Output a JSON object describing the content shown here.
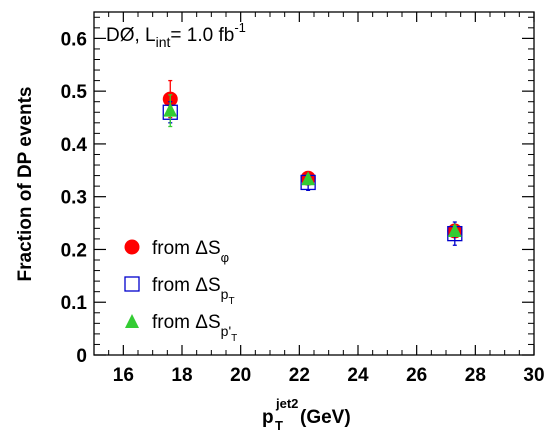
{
  "chart_data": {
    "type": "scatter",
    "xlabel": {
      "main": "p",
      "sup": "jet2",
      "sub": "T",
      "unit": "(GeV)"
    },
    "ylabel": "Fraction of DP events",
    "xlim": [
      15,
      30
    ],
    "ylim": [
      0,
      0.65
    ],
    "x_ticks": [
      "16",
      "18",
      "20",
      "22",
      "24",
      "26",
      "28",
      "30"
    ],
    "y_ticks": [
      "0",
      "0.1",
      "0.2",
      "0.3",
      "0.4",
      "0.5",
      "0.6"
    ],
    "experiment": {
      "name": "DØ, L",
      "sub": "int",
      "eq": "= 1.0 fb",
      "sup": "-1"
    },
    "series": [
      {
        "name": "from ΔSφ",
        "legend": {
          "text": "from ΔS",
          "sub": "φ",
          "subsub": ""
        },
        "marker": "circle",
        "color": "#ff0000",
        "x": [
          17.6,
          22.3,
          27.3
        ],
        "y": [
          0.485,
          0.335,
          0.235
        ],
        "yerr": [
          0.035,
          0.008,
          0.008
        ]
      },
      {
        "name": "from ΔSpT",
        "legend": {
          "text": "from ΔS",
          "sub": "p",
          "subsub": "T"
        },
        "marker": "open-square",
        "color": "#0000cc",
        "x": [
          17.6,
          22.3,
          27.3
        ],
        "y": [
          0.46,
          0.327,
          0.23
        ],
        "yerr": [
          0.02,
          0.015,
          0.022
        ]
      },
      {
        "name": "from ΔSp'T",
        "legend": {
          "text": "from ΔS",
          "sub": "p'",
          "subsub": "T"
        },
        "marker": "triangle",
        "color": "#33cc33",
        "x": [
          17.6,
          22.3,
          27.3
        ],
        "y": [
          0.463,
          0.333,
          0.235
        ],
        "yerr": [
          0.03,
          0.008,
          0.01
        ]
      }
    ],
    "legend_position": "lower-left",
    "grid": false
  }
}
